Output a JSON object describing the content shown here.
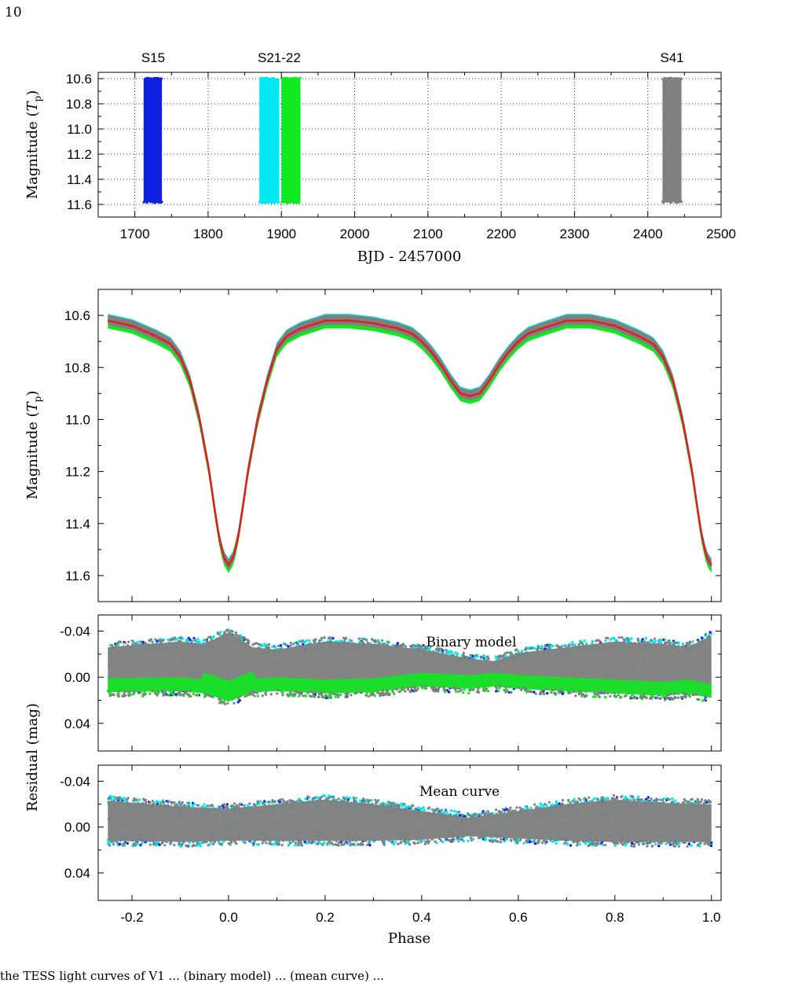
{
  "page": {
    "number": "10",
    "caption_fragment": "the TESS light curves of V1  ... (binary model) ... (mean curve) ..."
  },
  "colors": {
    "S15": "#1020e0",
    "S21": "#00e8f0",
    "S22": "#10e820",
    "S41": "#808080",
    "model": "#e02020"
  },
  "chart_data": [
    {
      "type": "scatter",
      "panel": "time-series",
      "xlabel": "BJD - 2457000",
      "ylabel": "Magnitude (T_p)",
      "xlim": [
        1650,
        2500
      ],
      "ylim": [
        11.7,
        10.55
      ],
      "y_inverted": true,
      "grid": true,
      "x_ticks": [
        1700,
        1800,
        1900,
        2000,
        2100,
        2200,
        2300,
        2400,
        2500
      ],
      "y_ticks": [
        10.6,
        10.8,
        11.0,
        11.2,
        11.4,
        11.6
      ],
      "sector_labels": [
        {
          "text": "S15",
          "x": 1725
        },
        {
          "text": "S21-22",
          "x": 1897
        },
        {
          "text": "S41",
          "x": 2433
        }
      ],
      "series": [
        {
          "name": "S15",
          "x_range": [
            1712,
            1737
          ],
          "y_range": [
            10.6,
            11.58
          ]
        },
        {
          "name": "S21",
          "x_range": [
            1870,
            1897
          ],
          "y_range": [
            10.6,
            11.58
          ]
        },
        {
          "name": "S22",
          "x_range": [
            1900,
            1926
          ],
          "y_range": [
            10.6,
            11.58
          ]
        },
        {
          "name": "S41",
          "x_range": [
            2420,
            2446
          ],
          "y_range": [
            10.6,
            11.58
          ]
        }
      ]
    },
    {
      "type": "line",
      "panel": "phased-light-curve",
      "ylabel": "Magnitude (T_p)",
      "xlim": [
        -0.27,
        1.02
      ],
      "ylim": [
        11.7,
        10.5
      ],
      "y_inverted": true,
      "y_ticks": [
        10.6,
        10.8,
        11.0,
        11.2,
        11.4,
        11.6
      ],
      "model_curve": {
        "x": [
          -0.25,
          -0.2,
          -0.15,
          -0.12,
          -0.1,
          -0.08,
          -0.06,
          -0.04,
          -0.03,
          -0.02,
          -0.01,
          0.0,
          0.01,
          0.02,
          0.03,
          0.04,
          0.06,
          0.08,
          0.1,
          0.12,
          0.15,
          0.2,
          0.25,
          0.3,
          0.35,
          0.38,
          0.4,
          0.42,
          0.44,
          0.46,
          0.48,
          0.5,
          0.52,
          0.54,
          0.56,
          0.58,
          0.6,
          0.62,
          0.65,
          0.7,
          0.75,
          0.8,
          0.85,
          0.88,
          0.9,
          0.92,
          0.94,
          0.96,
          0.97,
          0.98,
          0.99,
          1.0
        ],
        "y": [
          10.62,
          10.64,
          10.68,
          10.71,
          10.76,
          10.85,
          11.0,
          11.2,
          11.33,
          11.45,
          11.53,
          11.56,
          11.53,
          11.45,
          11.33,
          11.2,
          11.0,
          10.85,
          10.73,
          10.68,
          10.65,
          10.62,
          10.62,
          10.63,
          10.65,
          10.67,
          10.7,
          10.74,
          10.79,
          10.85,
          10.9,
          10.91,
          10.9,
          10.85,
          10.79,
          10.74,
          10.7,
          10.67,
          10.65,
          10.62,
          10.62,
          10.64,
          10.68,
          10.71,
          10.76,
          10.85,
          11.0,
          11.2,
          11.33,
          11.45,
          11.53,
          11.56
        ]
      }
    },
    {
      "type": "scatter",
      "panel": "residual-binary-model",
      "annotation": "Binary model",
      "xlim": [
        -0.27,
        1.02
      ],
      "ylim": [
        0.064,
        -0.054
      ],
      "y_inverted": true,
      "y_ticks": [
        -0.04,
        0.0,
        0.04
      ],
      "y_tick_labels": [
        "-0.04",
        "0.00",
        "0.04"
      ],
      "upper_envelope": {
        "x": [
          -0.25,
          -0.1,
          -0.05,
          0.0,
          0.05,
          0.1,
          0.2,
          0.3,
          0.4,
          0.5,
          0.55,
          0.6,
          0.7,
          0.8,
          0.9,
          0.95,
          1.0
        ],
        "y": [
          -0.03,
          -0.035,
          -0.033,
          -0.043,
          -0.03,
          -0.028,
          -0.035,
          -0.033,
          -0.028,
          -0.02,
          -0.018,
          -0.025,
          -0.03,
          -0.035,
          -0.033,
          -0.03,
          -0.04
        ]
      },
      "lower_envelope": {
        "x": [
          -0.25,
          -0.1,
          -0.05,
          0.0,
          0.05,
          0.1,
          0.2,
          0.3,
          0.4,
          0.5,
          0.55,
          0.6,
          0.7,
          0.8,
          0.9,
          0.95,
          1.0
        ],
        "y": [
          0.017,
          0.016,
          0.018,
          0.025,
          0.017,
          0.016,
          0.018,
          0.017,
          0.012,
          0.014,
          0.012,
          0.014,
          0.016,
          0.018,
          0.02,
          0.018,
          0.022
        ]
      }
    },
    {
      "type": "scatter",
      "panel": "residual-mean-curve",
      "annotation": "Mean curve",
      "xlabel": "Phase",
      "xlim": [
        -0.27,
        1.02
      ],
      "ylim": [
        0.064,
        -0.054
      ],
      "y_inverted": true,
      "y_ticks": [
        -0.04,
        0.0,
        0.04
      ],
      "y_tick_labels": [
        "-0.04",
        "0.00",
        "0.04"
      ],
      "x_ticks": [
        -0.2,
        0.0,
        0.2,
        0.4,
        0.6,
        0.8,
        1.0
      ],
      "x_tick_labels": [
        "-0.2",
        "0.0",
        "0.2",
        "0.4",
        "0.6",
        "0.8",
        "1.0"
      ],
      "upper_envelope": {
        "x": [
          -0.25,
          -0.1,
          0.0,
          0.1,
          0.2,
          0.3,
          0.4,
          0.5,
          0.6,
          0.7,
          0.8,
          0.9,
          1.0
        ],
        "y": [
          -0.027,
          -0.022,
          -0.02,
          -0.024,
          -0.028,
          -0.024,
          -0.018,
          -0.012,
          -0.018,
          -0.024,
          -0.028,
          -0.025,
          -0.024
        ]
      },
      "lower_envelope": {
        "x": [
          -0.25,
          -0.1,
          0.0,
          0.1,
          0.2,
          0.3,
          0.4,
          0.5,
          0.6,
          0.7,
          0.8,
          0.9,
          1.0
        ],
        "y": [
          0.016,
          0.017,
          0.016,
          0.016,
          0.016,
          0.016,
          0.015,
          0.012,
          0.014,
          0.016,
          0.017,
          0.017,
          0.017
        ]
      },
      "shared_ylabel": "Residual (mag)"
    }
  ]
}
